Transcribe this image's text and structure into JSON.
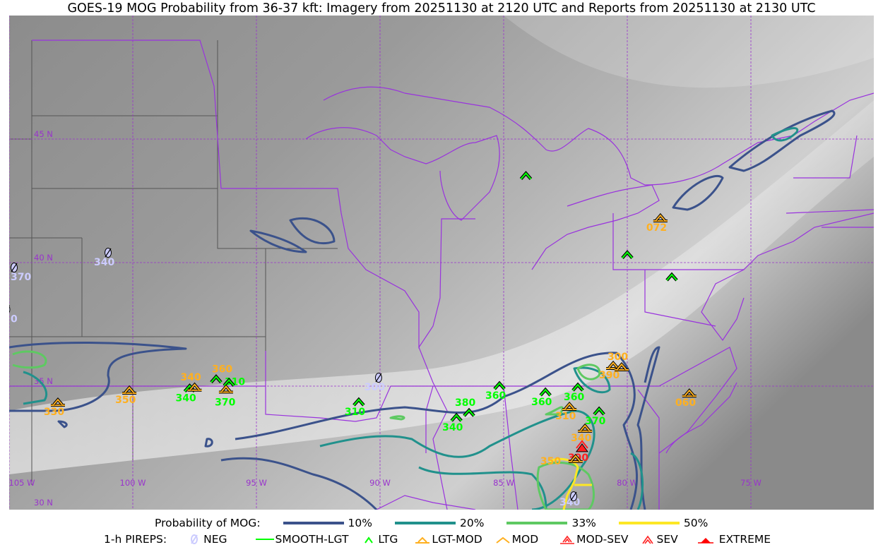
{
  "title": "GOES-19 MOG Probability from 36-37 kft: Imagery from 20251130 at 2120 UTC and Reports from 20251130 at 2130 UTC",
  "map": {
    "extent": {
      "lon": [
        -105,
        -70
      ],
      "lat": [
        30,
        50
      ]
    },
    "graticule": {
      "lon_labels": [
        {
          "lon": -105,
          "text": "105 W"
        },
        {
          "lon": -100,
          "text": "100 W"
        },
        {
          "lon": -95,
          "text": "95 W"
        },
        {
          "lon": -90,
          "text": "90 W"
        },
        {
          "lon": -85,
          "text": "85 W"
        },
        {
          "lon": -80,
          "text": "80 W"
        },
        {
          "lon": -75,
          "text": "75 W"
        }
      ],
      "lat_labels": [
        {
          "lat": 45,
          "text": "45 N"
        },
        {
          "lat": 40,
          "text": "40 N"
        },
        {
          "lat": 35,
          "text": "35 N"
        },
        {
          "lat": 30,
          "text": "30 N"
        }
      ],
      "color": "#9933cc"
    },
    "border_color": "#9933dd",
    "reports": [
      {
        "type": "LTG",
        "lon": -84.1,
        "lat": 43.5,
        "label": ""
      },
      {
        "type": "LGT-MOD",
        "lon": -78.66,
        "lat": 41.8,
        "label": "072"
      },
      {
        "type": "LTG",
        "lon": -80.0,
        "lat": 40.3,
        "label": ""
      },
      {
        "type": "LTG",
        "lon": -78.2,
        "lat": 39.4,
        "label": ""
      },
      {
        "type": "NEG",
        "lon": -101.0,
        "lat": 40.4,
        "label": "340"
      },
      {
        "type": "NEG",
        "lon": -104.8,
        "lat": 39.8,
        "label": "370"
      },
      {
        "type": "NEG",
        "lon": -105.1,
        "lat": 38.1,
        "label": "0"
      },
      {
        "type": "MOD",
        "lon": -103.03,
        "lat": 34.34,
        "label": "330"
      },
      {
        "type": "MOD",
        "lon": -100.14,
        "lat": 34.83,
        "label": "350"
      },
      {
        "type": "LTG",
        "lon": -97.7,
        "lat": 34.9,
        "label": "340"
      },
      {
        "type": "LGT-MOD",
        "lon": -97.5,
        "lat": 34.95,
        "label": "340"
      },
      {
        "type": "LTG",
        "lon": -96.63,
        "lat": 35.27,
        "label": "310"
      },
      {
        "type": "LTG",
        "lon": -96.11,
        "lat": 35.13,
        "label": "370"
      },
      {
        "type": "LGT-MOD",
        "lon": -96.23,
        "lat": 34.87,
        "label": "360"
      },
      {
        "type": "NEG",
        "lon": -90.06,
        "lat": 35.34,
        "label": "300"
      },
      {
        "type": "LTG",
        "lon": -90.86,
        "lat": 34.34,
        "label": "310"
      },
      {
        "type": "LTG",
        "lon": -86.91,
        "lat": 33.71,
        "label": "340"
      },
      {
        "type": "LTG",
        "lon": -86.4,
        "lat": 33.91,
        "label": "380"
      },
      {
        "type": "LTG",
        "lon": -85.17,
        "lat": 35.0,
        "label": "360"
      },
      {
        "type": "LTG",
        "lon": -83.31,
        "lat": 34.74,
        "label": "360"
      },
      {
        "type": "LTG",
        "lon": -82.0,
        "lat": 34.94,
        "label": "360"
      },
      {
        "type": "LGT-MOD",
        "lon": -82.34,
        "lat": 34.17,
        "label": "310"
      },
      {
        "type": "LTG",
        "lon": -81.14,
        "lat": 33.97,
        "label": "370"
      },
      {
        "type": "MOD",
        "lon": -81.71,
        "lat": 33.29,
        "label": "340"
      },
      {
        "type": "EXTREME",
        "lon": -81.83,
        "lat": 32.49,
        "label": "390"
      },
      {
        "type": "LGT-MOD",
        "lon": -82.09,
        "lat": 32.06,
        "label": "350"
      },
      {
        "type": "NEG",
        "lon": -82.17,
        "lat": 30.54,
        "label": "340"
      },
      {
        "type": "MOD",
        "lon": -80.57,
        "lat": 35.83,
        "label": "390"
      },
      {
        "type": "LGT-MOD",
        "lon": -80.23,
        "lat": 35.77,
        "label": "300"
      },
      {
        "type": "MOD",
        "lon": -77.49,
        "lat": 34.71,
        "label": "060"
      }
    ]
  },
  "legend": {
    "probability": {
      "label": "Probability of MOG:",
      "items": [
        {
          "label": "10%",
          "color": "#3b528b"
        },
        {
          "label": "20%",
          "color": "#21918c"
        },
        {
          "label": "33%",
          "color": "#5ec962"
        },
        {
          "label": "50%",
          "color": "#fde725"
        }
      ]
    },
    "pireps": {
      "label": "1-h PIREPS:",
      "items": [
        {
          "label": "NEG",
          "icon": "neg-circle-slash-icon",
          "color": "#ccccff"
        },
        {
          "label": "SMOOTH-LGT",
          "icon": "line-icon",
          "color": "#00ff00"
        },
        {
          "label": "LTG",
          "icon": "chevron-icon",
          "color": "#00ff00"
        },
        {
          "label": "LGT-MOD",
          "icon": "chevron-bar-icon",
          "color": "#ffb020"
        },
        {
          "label": "MOD",
          "icon": "chevron-icon",
          "color": "#ffb020"
        },
        {
          "label": "MOD-SEV",
          "icon": "double-chevron-bar-icon",
          "color": "#ff2020"
        },
        {
          "label": "SEV",
          "icon": "double-chevron-icon",
          "color": "#ff2020"
        },
        {
          "label": "EXTREME",
          "icon": "filled-triangle-icon",
          "color": "#ff0000"
        }
      ]
    }
  }
}
